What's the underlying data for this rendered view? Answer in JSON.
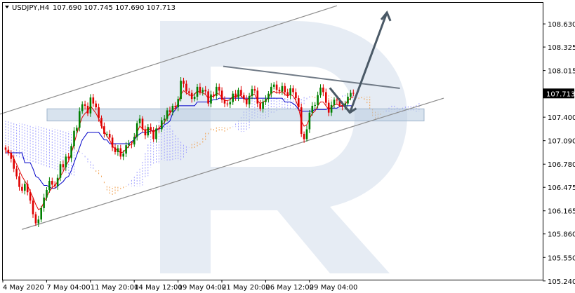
{
  "header": {
    "symbol_label": "USDJPY,H4",
    "ohlc_values": "107.690 107.745 107.690 107.713"
  },
  "colors": {
    "bull_candle": "#008000",
    "bear_candle": "#e00000",
    "tenkan_line": "#e00000",
    "kijun_line": "#0000c8",
    "cloud_bull": "#a0a0ff",
    "cloud_bear": "#f0a050",
    "channel_line": "#8c8c8c",
    "resistance_line": "#707a86",
    "forecast_arrow": "#4a5966",
    "support_zone": "#b8cce0",
    "price_badge": "#000000",
    "watermark": "#e6ecf4"
  },
  "icons": {
    "collapse": "triangle-down-icon",
    "watermark": "letter-r-watermark"
  },
  "chart_data": {
    "type": "candlestick",
    "symbol": "USDJPY",
    "timeframe": "H4",
    "y_axis": {
      "ticks": [
        105.24,
        105.55,
        105.86,
        106.165,
        106.475,
        106.78,
        107.09,
        107.4,
        107.713,
        108.015,
        108.325,
        108.63
      ],
      "tick_labels": [
        "105.240",
        "105.550",
        "105.860",
        "106.165",
        "106.475",
        "106.780",
        "107.090",
        "107.400",
        "107.713",
        "108.015",
        "108.325",
        "108.630"
      ],
      "current_price": 107.713,
      "current_price_label": "107.713",
      "ylim": [
        105.21,
        108.935
      ]
    },
    "x_axis": {
      "tick_labels": [
        "4 May 2020",
        "7 May 04:00",
        "11 May 20:00",
        "14 May 12:00",
        "19 May 04:00",
        "21 May 20:00",
        "26 May 12:00",
        "29 May 04:00"
      ],
      "tick_bars": [
        0,
        16,
        32,
        48,
        64,
        80,
        96,
        112
      ],
      "bar_count": 128
    },
    "closes": [
      106.97,
      106.93,
      106.85,
      106.72,
      106.62,
      106.48,
      106.43,
      106.52,
      106.41,
      106.3,
      106.12,
      106.0,
      106.05,
      106.2,
      106.34,
      106.44,
      106.56,
      106.51,
      106.49,
      106.6,
      106.78,
      106.74,
      106.88,
      106.86,
      107.02,
      107.22,
      107.26,
      107.48,
      107.57,
      107.55,
      107.45,
      107.66,
      107.58,
      107.53,
      107.39,
      107.28,
      107.18,
      107.18,
      107.13,
      107.0,
      106.94,
      106.99,
      106.88,
      106.92,
      107.03,
      107.05,
      107.04,
      107.14,
      107.32,
      107.38,
      107.24,
      107.16,
      107.27,
      107.23,
      107.11,
      107.25,
      107.24,
      107.36,
      107.38,
      107.49,
      107.47,
      107.55,
      107.53,
      107.64,
      107.88,
      107.84,
      107.74,
      107.72,
      107.64,
      107.67,
      107.8,
      107.73,
      107.76,
      107.74,
      107.58,
      107.7,
      107.68,
      107.8,
      107.75,
      107.63,
      107.58,
      107.57,
      107.6,
      107.71,
      107.66,
      107.76,
      107.69,
      107.64,
      107.57,
      107.68,
      107.77,
      107.75,
      107.58,
      107.51,
      107.6,
      107.64,
      107.71,
      107.8,
      107.83,
      107.76,
      107.74,
      107.81,
      107.73,
      107.69,
      107.78,
      107.73,
      107.65,
      107.53,
      107.18,
      107.11,
      107.24,
      107.46,
      107.55,
      107.56,
      107.69,
      107.79,
      107.73,
      107.59,
      107.46,
      107.56,
      107.63,
      107.62,
      107.56,
      107.54,
      107.58,
      107.67,
      107.72,
      107.713
    ],
    "kijun_sen": [
      106.93,
      106.93,
      106.93,
      106.93,
      106.93,
      106.93,
      106.93,
      106.8,
      106.8,
      106.8,
      106.72,
      106.62,
      106.6,
      106.55,
      106.5,
      106.5,
      106.48,
      106.46,
      106.46,
      106.49,
      106.52,
      106.55,
      106.6,
      106.62,
      106.7,
      106.8,
      106.9,
      107.0,
      107.1,
      107.15,
      107.2,
      107.2,
      107.2,
      107.2,
      107.2,
      107.15,
      107.1,
      107.1,
      107.05,
      107.05,
      107.05,
      107.05,
      107.05,
      107.05,
      107.05,
      107.05,
      107.08,
      107.1,
      107.15,
      107.18,
      107.2,
      107.2,
      107.2,
      107.22,
      107.22,
      107.22,
      107.25,
      107.25,
      107.3,
      107.32,
      107.35,
      107.45,
      107.5,
      107.55,
      107.55,
      107.55,
      107.55,
      107.55,
      107.55,
      107.55,
      107.6,
      107.6,
      107.6,
      107.6,
      107.6,
      107.62,
      107.63,
      107.63,
      107.65,
      107.65,
      107.65,
      107.65,
      107.65,
      107.65,
      107.65,
      107.65,
      107.65,
      107.65,
      107.65,
      107.65,
      107.65,
      107.65,
      107.65,
      107.65,
      107.65,
      107.65,
      107.65,
      107.65,
      107.65,
      107.65,
      107.65,
      107.65,
      107.6,
      107.6,
      107.6,
      107.58,
      107.55,
      107.5,
      107.48,
      107.48,
      107.48,
      107.48,
      107.48,
      107.5,
      107.5,
      107.5,
      107.5,
      107.5,
      107.52,
      107.52,
      107.52,
      107.52,
      107.54,
      107.54,
      107.55,
      107.55,
      107.55,
      107.55
    ],
    "tenkan_sen": [
      106.96,
      106.94,
      106.92,
      106.85,
      106.78,
      106.7,
      106.62,
      106.56,
      106.5,
      106.42,
      106.34,
      106.25,
      106.18,
      106.2,
      106.28,
      106.35,
      106.42,
      106.47,
      106.5,
      106.55,
      106.62,
      106.68,
      106.76,
      106.82,
      106.92,
      107.05,
      107.18,
      107.3,
      107.4,
      107.45,
      107.48,
      107.55,
      107.5,
      107.45,
      107.38,
      107.3,
      107.22,
      107.15,
      107.1,
      107.02,
      106.98,
      106.96,
      106.93,
      106.94,
      106.98,
      107.02,
      107.05,
      107.1,
      107.2,
      107.28,
      107.25,
      107.22,
      107.25,
      107.23,
      107.2,
      107.24,
      107.25,
      107.3,
      107.33,
      107.4,
      107.45,
      107.5,
      107.52,
      107.58,
      107.7,
      107.75,
      107.72,
      107.7,
      107.68,
      107.7,
      107.75,
      107.72,
      107.72,
      107.7,
      107.65,
      107.68,
      107.67,
      107.72,
      107.7,
      107.66,
      107.62,
      107.62,
      107.63,
      107.68,
      107.66,
      107.7,
      107.68,
      107.65,
      107.62,
      107.66,
      107.7,
      107.7,
      107.62,
      107.58,
      107.6,
      107.62,
      107.66,
      107.72,
      107.74,
      107.72,
      107.72,
      107.74,
      107.7,
      107.68,
      107.7,
      107.68,
      107.62,
      107.52,
      107.35,
      107.28,
      107.3,
      107.38,
      107.45,
      107.48,
      107.55,
      107.6,
      107.6,
      107.55,
      107.5,
      107.53,
      107.56,
      107.57,
      107.55,
      107.55,
      107.57,
      107.62,
      107.65,
      107.67
    ],
    "annotations": {
      "ascending_channel": {
        "upper": [
          [
            0,
            107.44
          ],
          [
            121,
            108.87
          ]
        ],
        "lower": [
          [
            6,
            105.92
          ],
          [
            160,
            107.65
          ]
        ]
      },
      "resistance": [
        [
          80,
          108.07
        ],
        [
          144,
          107.78
        ]
      ],
      "support_zone": [
        107.35,
        107.51
      ],
      "forecast_path": [
        [
          122,
          107.73
        ],
        [
          126,
          107.46
        ],
        [
          139,
          108.78
        ]
      ]
    }
  }
}
